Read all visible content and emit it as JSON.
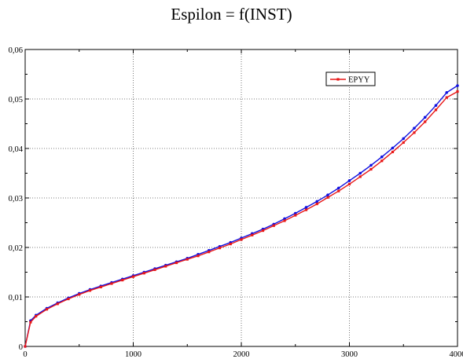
{
  "chart_data": {
    "type": "line",
    "title": "Espilon = f(INST)",
    "xlabel": "",
    "ylabel": "",
    "xlim": [
      0,
      4000
    ],
    "ylim": [
      0,
      0.06
    ],
    "x_ticks": [
      0,
      1000,
      2000,
      3000,
      4000
    ],
    "x_tick_labels": [
      "0",
      "1000",
      "2000",
      "3000",
      "4000"
    ],
    "y_ticks": [
      0,
      0.01,
      0.02,
      0.03,
      0.04,
      0.05,
      0.06
    ],
    "y_tick_labels": [
      "0",
      "0,01",
      "0,02",
      "0,03",
      "0,04",
      "0,05",
      "0,06"
    ],
    "grid": true,
    "legend_position": "top-right",
    "series": [
      {
        "name": "",
        "color": "#1010e0",
        "marker": "dot",
        "x": [
          0,
          50,
          100,
          200,
          300,
          400,
          500,
          600,
          700,
          800,
          900,
          1000,
          1100,
          1200,
          1300,
          1400,
          1500,
          1600,
          1700,
          1800,
          1900,
          2000,
          2100,
          2200,
          2300,
          2400,
          2500,
          2600,
          2700,
          2800,
          2900,
          3000,
          3100,
          3200,
          3300,
          3400,
          3500,
          3600,
          3700,
          3800,
          3900,
          4000
        ],
        "y": [
          0.0,
          0.0052,
          0.0063,
          0.0077,
          0.0088,
          0.0098,
          0.0107,
          0.0115,
          0.0122,
          0.0129,
          0.0136,
          0.0143,
          0.015,
          0.0157,
          0.0164,
          0.0171,
          0.0178,
          0.0186,
          0.0194,
          0.0202,
          0.021,
          0.0219,
          0.0228,
          0.0237,
          0.0247,
          0.0258,
          0.0269,
          0.0281,
          0.0293,
          0.0306,
          0.032,
          0.0335,
          0.035,
          0.0366,
          0.0383,
          0.0401,
          0.042,
          0.0441,
          0.0463,
          0.0487,
          0.0513,
          0.0527
        ]
      },
      {
        "name": "EPYY",
        "color": "#e81818",
        "marker": "square",
        "x": [
          0,
          50,
          100,
          200,
          300,
          400,
          500,
          600,
          700,
          800,
          900,
          1000,
          1100,
          1200,
          1300,
          1400,
          1500,
          1600,
          1700,
          1800,
          1900,
          2000,
          2100,
          2200,
          2300,
          2400,
          2500,
          2600,
          2700,
          2800,
          2900,
          3000,
          3100,
          3200,
          3300,
          3400,
          3500,
          3600,
          3700,
          3800,
          3900,
          4000
        ],
        "y": [
          0.0,
          0.0049,
          0.0061,
          0.0075,
          0.0086,
          0.0096,
          0.0105,
          0.0113,
          0.012,
          0.0127,
          0.0134,
          0.0141,
          0.0148,
          0.0155,
          0.0162,
          0.0169,
          0.0176,
          0.0183,
          0.0191,
          0.0199,
          0.0207,
          0.0216,
          0.0225,
          0.0234,
          0.0244,
          0.0254,
          0.0265,
          0.0276,
          0.0288,
          0.0301,
          0.0314,
          0.0328,
          0.0343,
          0.0358,
          0.0375,
          0.0393,
          0.0412,
          0.0432,
          0.0454,
          0.0478,
          0.0503,
          0.0515
        ]
      }
    ]
  }
}
